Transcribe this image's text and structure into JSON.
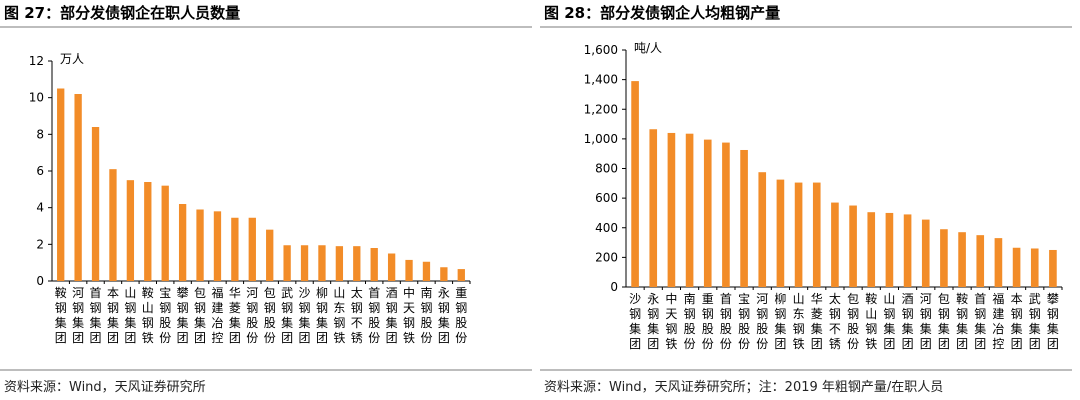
{
  "chart_data": [
    {
      "type": "bar",
      "title": "图 27：部分发债钢企在职人员数量",
      "unit": "万人",
      "ylim": [
        0,
        12
      ],
      "yticks": [
        "0",
        "2",
        "4",
        "6",
        "8",
        "10",
        "12"
      ],
      "categories": [
        "鞍钢集团",
        "河钢集团",
        "首钢集团",
        "本钢集团",
        "山钢集团",
        "鞍山钢铁",
        "宝钢股份",
        "攀钢集团",
        "包钢集团",
        "福建冶控",
        "华菱集团",
        "河钢股份",
        "包钢股份",
        "武钢集团",
        "沙钢集团",
        "柳钢集团",
        "山东钢铁",
        "太钢不锈",
        "首钢股份",
        "酒钢集团",
        "中天钢铁",
        "南钢股份",
        "永钢集团",
        "重钢股份"
      ],
      "values": [
        10.5,
        10.2,
        8.4,
        6.1,
        5.5,
        5.4,
        5.2,
        4.2,
        3.9,
        3.8,
        3.45,
        3.45,
        2.8,
        1.95,
        1.95,
        1.95,
        1.9,
        1.9,
        1.8,
        1.5,
        1.15,
        1.05,
        0.75,
        0.65
      ],
      "color": "#F28C28",
      "grid": false,
      "legend": "none",
      "source": "资料来源：Wind，天风证券研究所"
    },
    {
      "type": "bar",
      "title": "图 28：部分发债钢企人均粗钢产量",
      "unit": "吨/人",
      "ylim": [
        0,
        1600
      ],
      "yticks": [
        "0",
        "200",
        "400",
        "600",
        "800",
        "1,000",
        "1,200",
        "1,400",
        "1,600"
      ],
      "categories": [
        "沙钢集团",
        "永钢集团",
        "中天钢铁",
        "南钢股份",
        "重钢股份",
        "首钢股份",
        "宝钢股份",
        "河钢股份",
        "柳钢集团",
        "山东钢铁",
        "华菱集团",
        "太钢不锈",
        "包钢股份",
        "鞍山钢铁",
        "山钢集团",
        "酒钢集团",
        "河钢集团",
        "包钢集团",
        "鞍钢集团",
        "首钢集团",
        "福建冶控",
        "本钢集团",
        "武钢集团",
        "攀钢集团"
      ],
      "values": [
        1390,
        1065,
        1040,
        1035,
        995,
        975,
        925,
        775,
        725,
        705,
        705,
        570,
        550,
        505,
        500,
        490,
        455,
        390,
        370,
        350,
        330,
        265,
        260,
        250
      ],
      "color": "#F28C28",
      "grid": false,
      "legend": "none",
      "source": "资料来源：Wind，天风证券研究所；注：2019 年粗钢产量/在职人员"
    }
  ]
}
